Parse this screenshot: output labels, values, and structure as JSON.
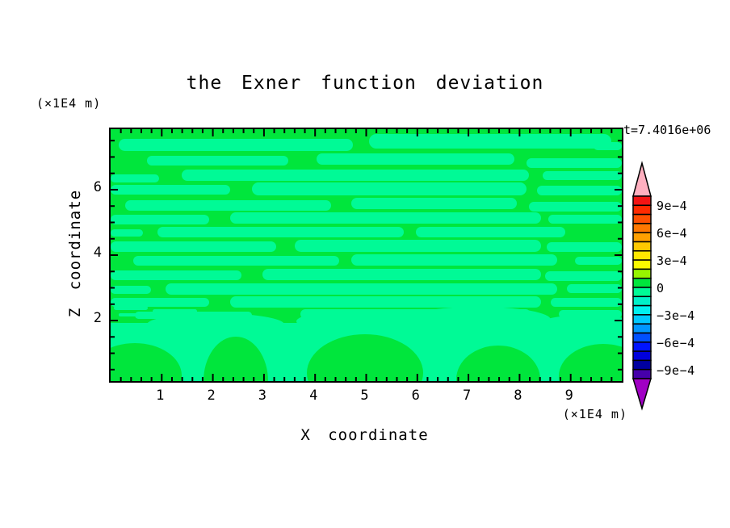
{
  "title": "the Exner function deviation",
  "time_label": "t=7.4016e+06",
  "axes": {
    "x": {
      "label": "X coordinate",
      "unit_label": "(×1E4 m)",
      "min": 0,
      "max": 10,
      "major_ticks": [
        1,
        2,
        3,
        4,
        5,
        6,
        7,
        8,
        9
      ],
      "minor_step": 0.2
    },
    "z": {
      "label": "Z coordinate",
      "unit_label": "(×1E4 m)",
      "min": 0.15,
      "max": 7.85,
      "major_ticks": [
        2,
        4,
        6
      ],
      "minor_step": 0.5
    }
  },
  "colorbar": {
    "labels": [
      "9e−4",
      "6e−4",
      "3e−4",
      "0",
      "−3e−4",
      "−6e−4",
      "−9e−4"
    ],
    "tick_values": [
      0.0009,
      0.0006,
      0.0003,
      0,
      -0.0003,
      -0.0006,
      -0.0009
    ],
    "over_color": "#FFB0C0",
    "under_color": "#A000C4",
    "segment_colors": [
      "#F41414",
      "#FF2A00",
      "#FF5000",
      "#FF7800",
      "#FFA000",
      "#FFC800",
      "#FFE800",
      "#FAFA00",
      "#96F500",
      "#00E63C",
      "#00FA96",
      "#00F0C8",
      "#00F0F0",
      "#00C8FF",
      "#0096FF",
      "#0050FF",
      "#0014FF",
      "#0000DC",
      "#0000A0",
      "#4600AA"
    ]
  },
  "chart_data": {
    "type": "filled_contour",
    "title": "the Exner function deviation",
    "xlabel": "X coordinate (×1E4 m)",
    "ylabel": "Z coordinate (×1E4 m)",
    "time_annotation": "t=7.4016e+06",
    "x_range": [
      0,
      10
    ],
    "z_range": [
      0.15,
      7.85
    ],
    "contour_interval": 0.0001,
    "colorbar_tick_values": [
      0.0009,
      0.0006,
      0.0003,
      0,
      -0.0003,
      -0.0006,
      -0.0009
    ],
    "visible_bands": [
      {
        "value_range": [
          0,
          0.0001
        ],
        "color": "#00E63C",
        "role": "background (slightly positive deviation)"
      },
      {
        "value_range": [
          -0.0001,
          0
        ],
        "color": "#00FA96",
        "role": "horizontal wave streaks and lower boundary region (slightly negative deviation)"
      }
    ],
    "streaks": [
      [
        10,
        12,
        290,
        15
      ],
      [
        320,
        6,
        300,
        18
      ],
      [
        598,
        16,
        35,
        10
      ],
      [
        45,
        33,
        175,
        12
      ],
      [
        255,
        30,
        245,
        14
      ],
      [
        515,
        36,
        118,
        12
      ],
      [
        88,
        50,
        430,
        14
      ],
      [
        535,
        52,
        98,
        11
      ],
      [
        0,
        56,
        60,
        10
      ],
      [
        0,
        69,
        148,
        12
      ],
      [
        175,
        66,
        340,
        16
      ],
      [
        528,
        70,
        105,
        12
      ],
      [
        18,
        88,
        255,
        13
      ],
      [
        298,
        85,
        205,
        14
      ],
      [
        518,
        90,
        115,
        12
      ],
      [
        0,
        106,
        122,
        12
      ],
      [
        148,
        103,
        385,
        14
      ],
      [
        542,
        106,
        91,
        11
      ],
      [
        58,
        121,
        305,
        13
      ],
      [
        378,
        121,
        185,
        13
      ],
      [
        0,
        124,
        40,
        9
      ],
      [
        0,
        139,
        205,
        13
      ],
      [
        228,
        137,
        305,
        15
      ],
      [
        540,
        140,
        93,
        12
      ],
      [
        28,
        157,
        255,
        12
      ],
      [
        298,
        155,
        255,
        14
      ],
      [
        575,
        158,
        58,
        10
      ],
      [
        0,
        175,
        162,
        12
      ],
      [
        188,
        173,
        345,
        14
      ],
      [
        538,
        176,
        95,
        12
      ],
      [
        68,
        191,
        485,
        14
      ],
      [
        0,
        194,
        50,
        10
      ],
      [
        565,
        192,
        68,
        11
      ],
      [
        0,
        209,
        122,
        11
      ],
      [
        148,
        207,
        385,
        14
      ],
      [
        545,
        209,
        88,
        11
      ],
      [
        235,
        223,
        285,
        12
      ],
      [
        30,
        226,
        145,
        9
      ],
      [
        555,
        224,
        78,
        10
      ],
      [
        4,
        219,
        42,
        5
      ],
      [
        52,
        223,
        55,
        5
      ],
      [
        10,
        228,
        30,
        4
      ]
    ],
    "bottom_band": [
      0,
      240,
      633,
      72
    ],
    "light_bumps": [
      [
        130,
        242,
        85,
        14
      ],
      [
        300,
        238,
        70,
        13
      ],
      [
        455,
        236,
        90,
        16
      ],
      [
        590,
        242,
        60,
        12
      ]
    ],
    "dark_islands": [
      [
        30,
        305,
        58,
        40
      ],
      [
        155,
        312,
        40,
        55
      ],
      [
        315,
        302,
        72,
        48
      ],
      [
        480,
        310,
        52,
        42
      ],
      [
        610,
        306,
        55,
        40
      ],
      [
        5,
        312,
        40,
        35
      ]
    ]
  }
}
